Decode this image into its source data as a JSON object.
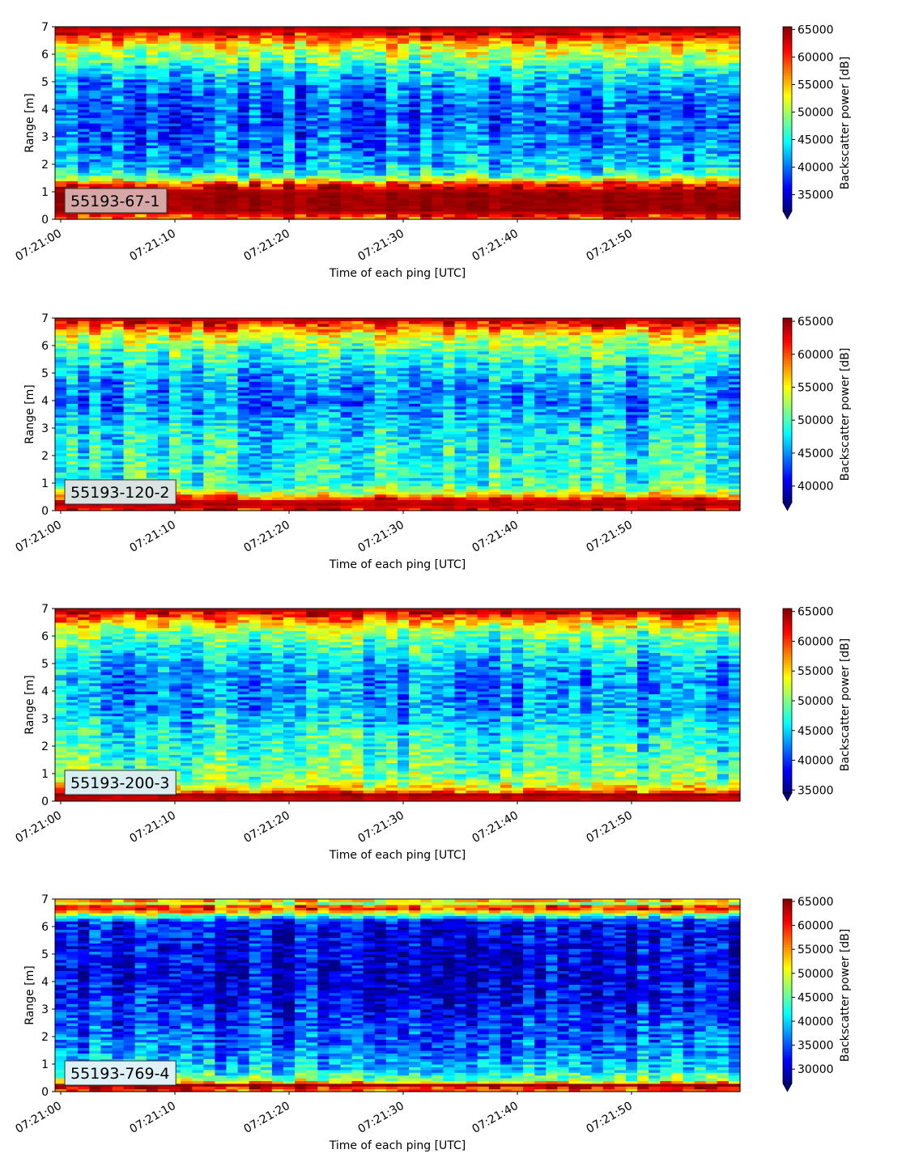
{
  "chart_data": [
    {
      "type": "heatmap",
      "label": "55193-67-1",
      "label_box_color": "#d7a7a7",
      "xlabel": "Time of each ping [UTC]",
      "ylabel": "Range [m]",
      "x_ticks": [
        "07:21:00",
        "07:21:10",
        "07:21:20",
        "07:21:30",
        "07:21:40",
        "07:21:50"
      ],
      "x_range_seconds": [
        0,
        60
      ],
      "y_ticks": [
        0,
        1,
        2,
        3,
        4,
        5,
        6,
        7
      ],
      "ylim": [
        0,
        7
      ],
      "colorbar_label": "Backscatter power [dB]",
      "colorbar_ticks": [
        35000,
        40000,
        45000,
        50000,
        55000,
        60000,
        65000
      ],
      "colorbar_range": [
        32000,
        65500
      ],
      "colorbar_extend": "min",
      "colormap": "jet",
      "profile": [
        {
          "range_m": 0.1,
          "level": 0.8
        },
        {
          "range_m": 0.3,
          "level": 0.97
        },
        {
          "range_m": 0.6,
          "level": 0.97
        },
        {
          "range_m": 1.0,
          "level": 0.97
        },
        {
          "range_m": 1.3,
          "level": 0.82
        },
        {
          "range_m": 1.6,
          "level": 0.42
        },
        {
          "range_m": 2.0,
          "level": 0.3
        },
        {
          "range_m": 3.0,
          "level": 0.22
        },
        {
          "range_m": 4.0,
          "level": 0.2
        },
        {
          "range_m": 5.0,
          "level": 0.27
        },
        {
          "range_m": 5.8,
          "level": 0.48
        },
        {
          "range_m": 6.3,
          "level": 0.62
        },
        {
          "range_m": 6.7,
          "level": 0.85
        },
        {
          "range_m": 7.0,
          "level": 0.97
        }
      ]
    },
    {
      "type": "heatmap",
      "label": "55193-120-2",
      "label_box_color": "#d9e4e2",
      "xlabel": "Time of each ping [UTC]",
      "ylabel": "Range [m]",
      "x_ticks": [
        "07:21:00",
        "07:21:10",
        "07:21:20",
        "07:21:30",
        "07:21:40",
        "07:21:50"
      ],
      "x_range_seconds": [
        0,
        60
      ],
      "y_ticks": [
        0,
        1,
        2,
        3,
        4,
        5,
        6,
        7
      ],
      "ylim": [
        0,
        7
      ],
      "colorbar_label": "Backscatter power [dB]",
      "colorbar_ticks": [
        40000,
        45000,
        50000,
        55000,
        60000,
        65000
      ],
      "colorbar_range": [
        37500,
        65500
      ],
      "colorbar_extend": "min",
      "colormap": "jet",
      "profile": [
        {
          "range_m": 0.1,
          "level": 0.9
        },
        {
          "range_m": 0.3,
          "level": 0.97
        },
        {
          "range_m": 0.5,
          "level": 0.8
        },
        {
          "range_m": 0.7,
          "level": 0.55
        },
        {
          "range_m": 1.0,
          "level": 0.42
        },
        {
          "range_m": 2.0,
          "level": 0.4
        },
        {
          "range_m": 3.0,
          "level": 0.36
        },
        {
          "range_m": 4.0,
          "level": 0.25
        },
        {
          "range_m": 5.0,
          "level": 0.33
        },
        {
          "range_m": 5.8,
          "level": 0.45
        },
        {
          "range_m": 6.4,
          "level": 0.62
        },
        {
          "range_m": 6.8,
          "level": 0.85
        },
        {
          "range_m": 7.0,
          "level": 0.97
        }
      ]
    },
    {
      "type": "heatmap",
      "label": "55193-200-3",
      "label_box_color": "#d9eef0",
      "xlabel": "Time of each ping [UTC]",
      "ylabel": "Range [m]",
      "x_ticks": [
        "07:21:00",
        "07:21:10",
        "07:21:20",
        "07:21:30",
        "07:21:40",
        "07:21:50"
      ],
      "x_range_seconds": [
        0,
        60
      ],
      "y_ticks": [
        0,
        1,
        2,
        3,
        4,
        5,
        6,
        7
      ],
      "ylim": [
        0,
        7
      ],
      "colorbar_label": "Backscatter power [dB]",
      "colorbar_ticks": [
        35000,
        40000,
        45000,
        50000,
        55000,
        60000,
        65000
      ],
      "colorbar_range": [
        34500,
        65500
      ],
      "colorbar_extend": "min",
      "colormap": "jet",
      "profile": [
        {
          "range_m": 0.1,
          "level": 0.92
        },
        {
          "range_m": 0.25,
          "level": 0.97
        },
        {
          "range_m": 0.4,
          "level": 0.7
        },
        {
          "range_m": 0.8,
          "level": 0.5
        },
        {
          "range_m": 1.5,
          "level": 0.45
        },
        {
          "range_m": 2.5,
          "level": 0.38
        },
        {
          "range_m": 3.5,
          "level": 0.28
        },
        {
          "range_m": 4.5,
          "level": 0.26
        },
        {
          "range_m": 5.5,
          "level": 0.38
        },
        {
          "range_m": 6.2,
          "level": 0.52
        },
        {
          "range_m": 6.6,
          "level": 0.72
        },
        {
          "range_m": 6.9,
          "level": 0.92
        },
        {
          "range_m": 7.0,
          "level": 0.97
        }
      ]
    },
    {
      "type": "heatmap",
      "label": "55193-769-4",
      "label_box_color": "#ddf1f6",
      "xlabel": "Time of each ping [UTC]",
      "ylabel": "Range [m]",
      "x_ticks": [
        "07:21:00",
        "07:21:10",
        "07:21:20",
        "07:21:30",
        "07:21:40",
        "07:21:50"
      ],
      "x_range_seconds": [
        0,
        60
      ],
      "y_ticks": [
        0,
        1,
        2,
        3,
        4,
        5,
        6,
        7
      ],
      "ylim": [
        0,
        7
      ],
      "colorbar_label": "Backscatter power [dB]",
      "colorbar_ticks": [
        30000,
        35000,
        40000,
        45000,
        50000,
        55000,
        60000,
        65000
      ],
      "colorbar_range": [
        27000,
        65500
      ],
      "colorbar_extend": "min",
      "colormap": "jet",
      "profile": [
        {
          "range_m": 0.1,
          "level": 0.8
        },
        {
          "range_m": 0.25,
          "level": 0.97
        },
        {
          "range_m": 0.4,
          "level": 0.55
        },
        {
          "range_m": 0.8,
          "level": 0.34
        },
        {
          "range_m": 1.5,
          "level": 0.25
        },
        {
          "range_m": 2.5,
          "level": 0.18
        },
        {
          "range_m": 3.5,
          "level": 0.12
        },
        {
          "range_m": 4.5,
          "level": 0.1
        },
        {
          "range_m": 5.5,
          "level": 0.11
        },
        {
          "range_m": 6.2,
          "level": 0.14
        },
        {
          "range_m": 6.5,
          "level": 0.6
        },
        {
          "range_m": 6.7,
          "level": 0.9
        },
        {
          "range_m": 6.85,
          "level": 0.55
        },
        {
          "range_m": 7.0,
          "level": 0.75
        }
      ]
    }
  ]
}
